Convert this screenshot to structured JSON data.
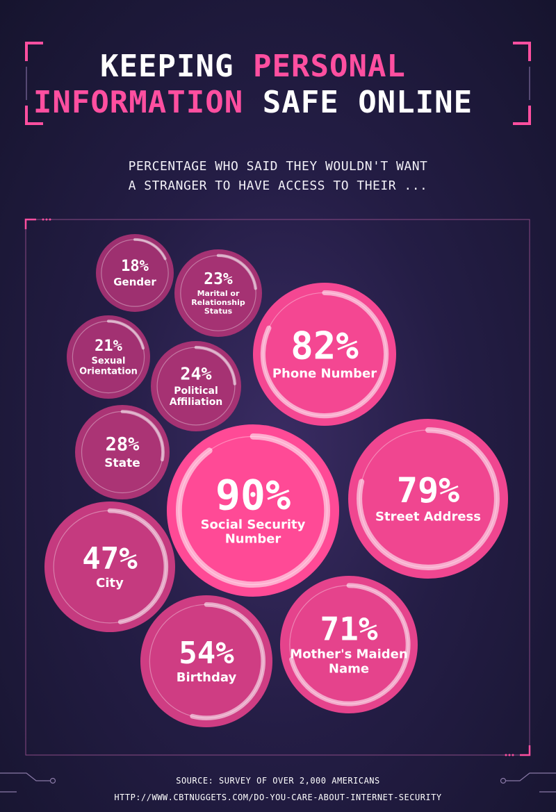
{
  "title": {
    "line1_a": "KEEPING ",
    "line1_b": "PERSONAL",
    "line2_a": "INFORMATION",
    "line2_b": " SAFE ONLINE"
  },
  "subtitle": {
    "line1": "PERCENTAGE WHO SAID THEY WOULDN'T WANT",
    "line2": "A STRANGER TO HAVE ACCESS TO THEIR ..."
  },
  "colors": {
    "accent": "#ff4fa0",
    "bubble_light": "#ff4a96",
    "bubble_dark": "#9e3070",
    "background": "#241d45"
  },
  "chart_data": {
    "type": "bubble",
    "unit": "%",
    "items": [
      {
        "label": "Gender",
        "value": 18
      },
      {
        "label": "Marital or Relationship Status",
        "value": 23
      },
      {
        "label": "Sexual Orientation",
        "value": 21
      },
      {
        "label": "Political Affiliation",
        "value": 24
      },
      {
        "label": "State",
        "value": 28
      },
      {
        "label": "Phone Number",
        "value": 82
      },
      {
        "label": "Social Security Number",
        "value": 90
      },
      {
        "label": "Street Address",
        "value": 79
      },
      {
        "label": "City",
        "value": 47
      },
      {
        "label": "Birthday",
        "value": 54
      },
      {
        "label": "Mother's Maiden Name",
        "value": 71
      }
    ]
  },
  "footer": {
    "source": "SOURCE:  SURVEY OF OVER 2,000 AMERICANS",
    "url": "HTTP://WWW.CBTNUGGETS.COM/DO-YOU-CARE-ABOUT-INTERNET-SECURITY"
  }
}
